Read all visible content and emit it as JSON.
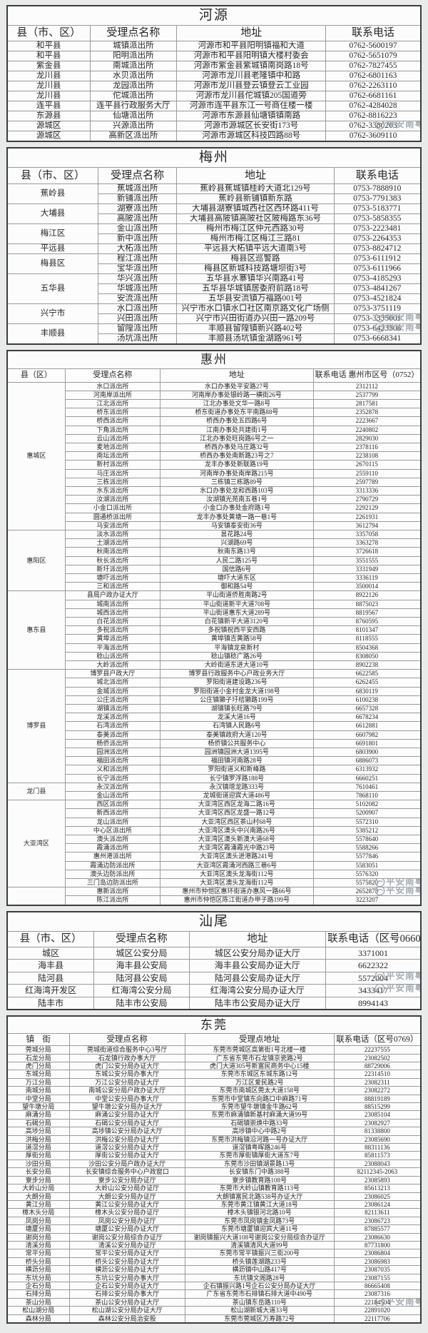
{
  "watermark": {
    "text": "平安南粤"
  },
  "tables": [
    {
      "id": "heyuan",
      "title": "河源",
      "headers": [
        "县（市、区）",
        "受理点名称",
        "地址",
        "联系电话"
      ],
      "groups": [
        {
          "county": "和平县",
          "rows": [
            [
              "城镇派出所",
              "河源市和平县阳明镇福和大道",
              "0762-5600197"
            ]
          ]
        },
        {
          "county": "和平县",
          "rows": [
            [
              "阳明派出所",
              "河源市和平县阳明镇大楼村委会",
              "0762-5651079"
            ]
          ]
        },
        {
          "county": "紫金县",
          "rows": [
            [
              "南城派出所",
              "河源市紫金县紫城镇南岗路18号",
              "0762-7827455"
            ]
          ]
        },
        {
          "county": "龙川县",
          "rows": [
            [
              "水贝派出所",
              "河源市龙川县老隆镇中和路",
              "0762-6801163"
            ]
          ]
        },
        {
          "county": "龙川县",
          "rows": [
            [
              "龙园派出所",
              "河源市龙川县登云镇登云工业园",
              "0762-2263110"
            ]
          ]
        },
        {
          "county": "龙川县",
          "rows": [
            [
              "佗城派出所",
              "河源市龙川县佗城镇205国道旁",
              "0762-6681161"
            ]
          ]
        },
        {
          "county": "连平县",
          "rows": [
            [
              "连平县行政服务大厅",
              "河源市连平县东江一号商住楼一楼",
              "0762-4284028"
            ]
          ]
        },
        {
          "county": "东源县",
          "rows": [
            [
              "仙塘派出所",
              "河源市东源县仙塘镇镇南路",
              "0762-8816223"
            ]
          ]
        },
        {
          "county": "源城区",
          "rows": [
            [
              "兴源派出所",
              "河源市源城区长安街173号",
              "0762-3380203"
            ]
          ]
        },
        {
          "county": "源城区",
          "rows": [
            [
              "高新区派出所",
              "河源市源城区科技四路88号",
              "0762-3609110"
            ]
          ]
        }
      ]
    },
    {
      "id": "meizhou",
      "title": "梅州",
      "headers": [
        "县（市、区）",
        "受理点名称",
        "地址",
        "联系电话"
      ],
      "groups": [
        {
          "county": "蕉岭县",
          "rows": [
            [
              "蕉城派出所",
              "蕉岭县蕉城镇桂岭大道北129号",
              "0753-7888910"
            ],
            [
              "新铺派出所",
              "蕉岭县新铺镇新东路",
              "0753-7791383"
            ]
          ]
        },
        {
          "county": "大埔县",
          "rows": [
            [
              "湖寮派出所",
              "大埔县湖寮镇城西社区西环路411号",
              "0753-5183771"
            ],
            [
              "高陂派出所",
              "大埔县高陂镇高陂社区陂梅路东36号",
              "0753-5858355"
            ]
          ]
        },
        {
          "county": "梅江区",
          "rows": [
            [
              "金山派出所",
              "梅州市梅江区仲元西路30号",
              "0753-2223481"
            ],
            [
              "新中派出所",
              "梅州市梅江区梅江三路81",
              "0753-2264353"
            ]
          ]
        },
        {
          "county": "平远县",
          "rows": [
            [
              "大柘派出所",
              "平远县大柘镇平远大道南3号",
              "0753-8824712"
            ]
          ]
        },
        {
          "county": "梅县区",
          "rows": [
            [
              "程江派出所",
              "梅县区巡警路",
              "0753-6111912"
            ],
            [
              "宝华派出所",
              "梅县区新城科技路塘坝街3号",
              "0753-6111966"
            ]
          ]
        },
        {
          "county": "五华县",
          "rows": [
            [
              "华兴派出所",
              "五华县水寨镇华兴南路41号",
              "0753-4185293"
            ],
            [
              "华城派出所",
              "五华县华城镇居委府前路18号",
              "0753-4841267"
            ],
            [
              "安流派出所",
              "五华县安流镇万福路001号",
              "0753-4521824"
            ]
          ]
        },
        {
          "county": "兴宁市",
          "rows": [
            [
              "水口派出所",
              "兴宁市水口镇水口社区南京路文化广场侧",
              "0753-3751119"
            ],
            [
              "兴田派出所",
              "兴宁市兴田街道办兴田一路209号",
              "0753-3335001"
            ]
          ]
        },
        {
          "county": "丰顺县",
          "rows": [
            [
              "留隍派出所",
              "丰顺县留隍镇新兴路402号",
              "0753-6423306"
            ],
            [
              "汤坑派出所",
              "丰顺县汤坑镇金湖路961号",
              "0753-6668341"
            ]
          ]
        }
      ]
    },
    {
      "id": "huizhou",
      "title": "惠州",
      "headers": [
        "县（区）",
        "受理点名称",
        "地址",
        "联系电话\n惠州市区号（0752）"
      ],
      "groups": [
        {
          "county": "惠城区",
          "rows": [
            [
              "水口派出所",
              "水口办事处平安路27号",
              "2312112"
            ],
            [
              "河南岸派出所",
              "河南岸办事处银岭路一横街26号",
              "2537799"
            ],
            [
              "江北派出所",
              "江北办事处文华一路8号",
              "2817581"
            ],
            [
              "桥东派出所",
              "桥东街道办事处东平南路88号",
              "2352878"
            ],
            [
              "桥西派出所",
              "桥西办事处五四路6号",
              "2223667"
            ],
            [
              "下角派出所",
              "江南办事处共建街1号",
              "2240802"
            ],
            [
              "云山派出所",
              "江北办事处旺岗路6号之一",
              "2829030"
            ],
            [
              "麦地派出所",
              "桥西办事处马庄路32号",
              "2378116"
            ],
            [
              "南坛派出所",
              "桥西办事处南新路23号之7",
              "2238108"
            ],
            [
              "新村派出所",
              "龙丰办事处新联路19号",
              "2670115"
            ],
            [
              "马庄派出所",
              "河南岸办事处南岸路215号",
              "2559110"
            ],
            [
              "三栋派出所",
              "三栋镇三栋路89号",
              "2597789"
            ],
            [
              "水东派出所",
              "水口办事处龙和西路103号",
              "3313336"
            ],
            [
              "汝湖派出所",
              "汝湖镇光苑南五巷1号",
              "2790729"
            ],
            [
              "小金口派出所",
              "小金口办事处金府路1号",
              "2292129"
            ],
            [
              "圆通桥派出所",
              "龙丰办事处黄塘一路一巷1号",
              "2261931"
            ],
            [
              "马安派出所",
              "马安镇泰安街36号",
              "3612794"
            ]
          ]
        },
        {
          "county": "惠阳区",
          "rows": [
            [
              "淡水派出所",
              "昙花路24号",
              "3357058"
            ],
            [
              "土湖派出所",
              "兴湖路69号",
              "3363278"
            ],
            [
              "秋南派出所",
              "秋南东路13号",
              "3726618"
            ],
            [
              "秋长派出所",
              "人民二路125号",
              "3551555"
            ],
            [
              "新圩派出所",
              "国信路6号",
              "3331949"
            ],
            [
              "塘吓派出所",
              "塘吓大道东区",
              "3336119"
            ],
            [
              "三和派出所",
              "御和路54号",
              "3500014"
            ]
          ]
        },
        {
          "county": "惠东县",
          "rows": [
            [
              "县局户政办证大厅",
              "平山街道侨胜南路2号",
              "8922126"
            ],
            [
              "城南派出所",
              "平山街道新平大道708号",
              "8875023"
            ],
            [
              "城西派出所",
              "平山街道惠东大道289号",
              "8819567"
            ],
            [
              "白花派出所",
              "白花镇新平大道3120号",
              "8760595"
            ],
            [
              "多祝派出所",
              "多祝镇祝西平安西路",
              "8101347"
            ],
            [
              "黄埠派出所",
              "黄埠镇吉黄路58号",
              "8118555"
            ],
            [
              "平海派出所",
              "平海镇龙泉新村",
              "8504368"
            ],
            [
              "稔山派出所",
              "稔山镇稔广路26号",
              "8308050"
            ],
            [
              "大岭派出所",
              "大岭街道东进大道10号",
              "8902238"
            ]
          ]
        },
        {
          "county": "博罗县",
          "rows": [
            [
              "博罗县户政大厅",
              "博罗县行政服务中心户政业务大厅",
              "6622585"
            ],
            [
              "城北派出所",
              "罗阳街道建设路236号",
              "6262455"
            ],
            [
              "金城派出所",
              "罗阳街道小金村金龙大道198号",
              "6830119"
            ],
            [
              "公庄派出所",
              "公庄镇獭子圩桔獭路199号",
              "6100238"
            ],
            [
              "湖镇派出所",
              "湖镇镇长旺路79号",
              "6657328"
            ],
            [
              "龙溪派出所",
              "龙溪大道16号",
              "6678234"
            ],
            [
              "石湾派出所",
              "石湾镇人民路6号",
              "6612881"
            ],
            [
              "泰美派出所",
              "泰美镇政府大道120号",
              "6607982"
            ],
            [
              "杨侨派出所",
              "杨侨镇公共服务中心",
              "6691801"
            ],
            [
              "园洲派出所",
              "园洲镇园洲大道1395号",
              "6803900"
            ],
            [
              "福田派出所",
              "福田镇河南路28号",
              "6886073"
            ],
            [
              "义和派出所",
              "罗阳街道义和新峰路",
              "6313932"
            ],
            [
              "长宁派出所",
              "长宁镇罗浮路188号",
              "6660251"
            ]
          ]
        },
        {
          "county": "龙门县",
          "rows": [
            [
              "永汉派出所",
              "永汉镇增龙路333号",
              "7610461"
            ],
            [
              "金山派出所",
              "龙城街道迎宾大道486号",
              "7868110"
            ]
          ]
        },
        {
          "county": "大亚湾区",
          "rows": [
            [
              "西区派出所",
              "大亚湾区西区龙海二路16号",
              "5102082"
            ],
            [
              "新西派出所",
              "大亚湾区西区龙盛一路12号",
              "5200907"
            ],
            [
              "龙山派出所",
              "大亚湾区西区茶山村68号",
              "5572310"
            ],
            [
              "中心区派出所",
              "大亚湾区澳头中兴南路26号",
              "5385212"
            ],
            [
              "澳头派出所",
              "大亚湾区澳头新澳大道68号",
              "5578640"
            ],
            [
              "霞涌派出所",
              "大亚湾区霞涌霞光中路23号",
              "5588266"
            ],
            [
              "惠州港派出所",
              "大亚湾区澳头进港路241号",
              "5577846"
            ],
            [
              "霞涌边防派出所",
              "大亚湾区霞涌河西路三巷6号",
              "5583051"
            ],
            [
              "澳头边防派出所",
              "大亚湾区澳头龙海街112号",
              "5576320"
            ],
            [
              "三门岛边防派出所",
              "大亚湾区澳头龙海街112号",
              "5575820"
            ]
          ]
        },
        {
          "county": "",
          "rows": [
            [
              "惠新派出所",
              "惠州市仲恺区惠环街道办惠风一路66号",
              "2652873"
            ],
            [
              "陈江派出所",
              "惠州市仲恺区陈江街道办甲子路199号",
              "3223207"
            ]
          ]
        }
      ]
    },
    {
      "id": "shanwei",
      "title": "汕尾",
      "headers": [
        "县（市、区）",
        "受理点名称",
        "地址",
        "联系电话（区号0660）"
      ],
      "groups": [
        {
          "county": "城区",
          "rows": [
            [
              "城区公安分局",
              "城区公安分局办证大厅",
              "3371001"
            ]
          ]
        },
        {
          "county": "海丰县",
          "rows": [
            [
              "海丰县公安局",
              "海丰县公安局办证大厅",
              "6622322"
            ]
          ]
        },
        {
          "county": "陆河县",
          "rows": [
            [
              "陆河县公安局",
              "陆河县公安局办证大厅",
              "5572004"
            ]
          ]
        },
        {
          "county": "红海湾开发区",
          "rows": [
            [
              "红海湾公安分局",
              "红海湾公安分局办证大厅",
              "3433417"
            ]
          ]
        },
        {
          "county": "陆丰市",
          "rows": [
            [
              "陆丰市公安局",
              "陆丰市公安局办证大厅",
              "8994143"
            ]
          ]
        }
      ]
    },
    {
      "id": "dongguan",
      "title": "东莞",
      "headers": [
        "镇　街",
        "受理点名称",
        "受理点地址",
        "联系电话（区号0769）"
      ],
      "groups": [
        {
          "county": "莞城分局",
          "rows": [
            [
              "莞城街道综合服务中心3号厅",
              "东莞市莞城区高第街1号北楼一楼",
              "22237555"
            ]
          ]
        },
        {
          "county": "石龙分局",
          "rows": [
            [
              "石龙镇行政办事大厅",
              "广东省东莞市石龙镇京瓷路2号",
              "23082502"
            ]
          ]
        },
        {
          "county": "虎门分局",
          "rows": [
            [
              "虎门公安分局办证大厅",
              "虎门大道305号新富民商务中心15楼",
              "88729006"
            ]
          ]
        },
        {
          "county": "东城分局",
          "rows": [
            [
              "东城公安分局办事大厅",
              "东莞市东城区东城东路12号",
              "22314510"
            ]
          ]
        },
        {
          "county": "万江分局",
          "rows": [
            [
              "万江公安分局办证大厅",
              "万江区爱民路2号",
              "23082311"
            ]
          ]
        },
        {
          "county": "南城分局",
          "rows": [
            [
              "南城公安分局户政办证大厅",
              "东莞市南城区莞太大道158号",
              "23082272"
            ]
          ]
        },
        {
          "county": "中堂分局",
          "rows": [
            [
              "中堂公安分局办事大厅",
              "东莞市中堂镇东向路口中麻路71号",
              "88819189"
            ]
          ]
        },
        {
          "county": "望牛墩分局",
          "rows": [
            [
              "望牛墩公安分局办证大厅",
              "东莞市望牛墩镇金牛路62号",
              "88515299"
            ]
          ]
        },
        {
          "county": "麻涌分局",
          "rows": [
            [
              "麻涌公安分局办证大厅",
              "东莞市麻涌镇新基村麻涌大道99号",
              "23085104"
            ]
          ]
        },
        {
          "county": "石碣分局",
          "rows": [
            [
              "石碣公安分局办证大厅",
              "石碣镇崇焕中路33号",
              "23082927"
            ]
          ]
        },
        {
          "county": "高埗分局",
          "rows": [
            [
              "高埗镇公安分局办证大厅",
              "高埗镇中心中路2号",
              "81338800"
            ]
          ]
        },
        {
          "county": "洪梅分局",
          "rows": [
            [
              "洪梅公安分局办证大厅",
              "东莞市洪梅镇沿河路一号办证大厅",
              "23085690"
            ]
          ]
        },
        {
          "county": "道滘分局",
          "rows": [
            [
              "道滘公安分局办证大厅",
              "道滘镇粤晖路246号",
              "88311136"
            ]
          ]
        },
        {
          "county": "厚街分局",
          "rows": [
            [
              "厚街公安分局办证大厅",
              "东莞市厚街镇厚街大道东7号",
              "85811573"
            ]
          ]
        },
        {
          "county": "沙田分局",
          "rows": [
            [
              "沙田公安分局户政办证大厅",
              "东莞市沙田镇湖景路13号",
              "23088043"
            ]
          ]
        },
        {
          "county": "长安分局",
          "rows": [
            [
              "长安镇综合服务中心户政窗口",
              "长安镇东门中路388号",
              "82112345-2063"
            ]
          ]
        },
        {
          "county": "寮步分局",
          "rows": [
            [
              "寮步公安分局办证厅",
              "寮步镇教育路108号",
              "23085893"
            ]
          ]
        },
        {
          "county": "大岭山分局",
          "rows": [
            [
              "大岭山公安分局办证厅",
              "东莞市大岭山镇教育路113号",
              "85613213"
            ]
          ]
        },
        {
          "county": "大朗分局",
          "rows": [
            [
              "大朗公安分局办证厅",
              "大朗镇富民北路538号办证大厅",
              "23086025"
            ]
          ]
        },
        {
          "county": "黄江分局",
          "rows": [
            [
              "黄江公安分局办证大厅",
              "东莞市黄江镇黄江大道18号",
              "23086124"
            ]
          ]
        },
        {
          "county": "樟木头分局",
          "rows": [
            [
              "樟木头公安分局办证厅",
              "樟木头镇银河北路10号",
              "82113611"
            ]
          ]
        },
        {
          "county": "凤岗分局",
          "rows": [
            [
              "凤岗公安分局办证厅",
              "东莞市凤岗镇金凤路73号",
              "23086723"
            ]
          ]
        },
        {
          "county": "塘厦分局",
          "rows": [
            [
              "塘厦公安分局办证大厅",
              "东莞市塘厦镇迎宾大道11号",
              "87885577"
            ]
          ]
        },
        {
          "county": "谢岗分局",
          "rows": [
            [
              "谢岗公安分局综合办证厅",
              "谢岗镇振兴大道108号谢岗公安分局综合办证厅",
              "23086630"
            ]
          ]
        },
        {
          "county": "清溪分局",
          "rows": [
            [
              "清溪公安分局办证厅",
              "清溪镇清风大道99号",
              "87731800"
            ]
          ]
        },
        {
          "county": "常平分局",
          "rows": [
            [
              "常平公安分局办证大厅",
              "东莞市常平镇振兴三街200号",
              "23086804"
            ]
          ]
        },
        {
          "county": "桥头分局",
          "rows": [
            [
              "桥头公安分局办证大厅",
              "桥头镇莲湖路233号",
              "23086983"
            ]
          ]
        },
        {
          "county": "横沥分局",
          "rows": [
            [
              "横沥公安分局办证大厅",
              "横沥镇中山路417号",
              "23087035"
            ]
          ]
        },
        {
          "county": "东坑分局",
          "rows": [
            [
              "东坑公安分局办事大厅",
              "东坑镇文阁路28号",
              "23087155"
            ]
          ]
        },
        {
          "county": "企石分局",
          "rows": [
            [
              "企石公安分局办证大厅",
              "企石镇振兴路1号企石公安分局办证大厅",
              "86665408"
            ]
          ]
        },
        {
          "county": "石排分局",
          "rows": [
            [
              "石排公安分局办事大厅",
              "广东省东莞市石排镇石排大道中490号",
              "23087316"
            ]
          ]
        },
        {
          "county": "茶山分局",
          "rows": [
            [
              "茶山公安分局办证大厅",
              "茶山镇东岳路110号",
              "22184504"
            ]
          ]
        },
        {
          "county": "松山湖分局",
          "rows": [
            [
              "松山湖公安分局办证大厅",
              "松山湖新城大道33号",
              "22891020"
            ]
          ]
        },
        {
          "county": "森林分局",
          "rows": [
            [
              "森林公安分局治安股",
              "东莞市莞城区万寿路72号",
              "22117706"
            ]
          ]
        }
      ]
    }
  ]
}
